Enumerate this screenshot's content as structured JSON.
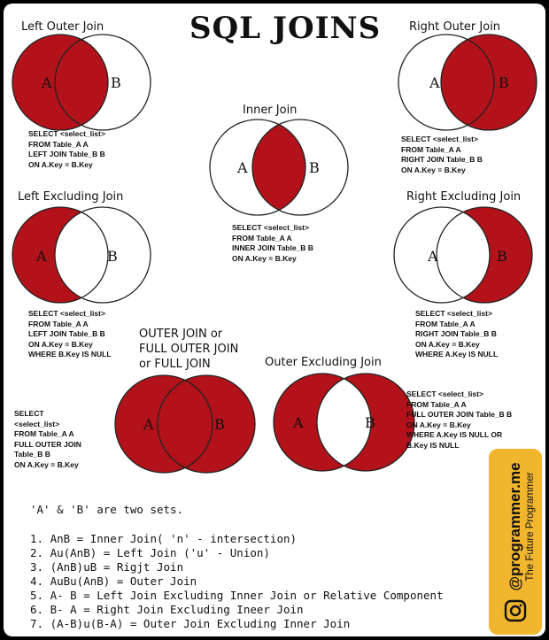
{
  "title": "SQL JOINS",
  "set_a": "A",
  "set_b": "B",
  "colors": {
    "fill": "#b3121a",
    "stroke": "#222222",
    "background": "#ffffff",
    "brand": "#f2b62e"
  },
  "left_outer": {
    "title": "Left Outer Join",
    "code": [
      "SELECT <select_list>",
      "FROM Table_A A",
      "LEFT JOIN Table_B B",
      "ON A.Key = B.Key"
    ]
  },
  "right_outer": {
    "title": "Right Outer Join",
    "code": [
      "SELECT <select_list>",
      "FROM Table_A A",
      "RIGHT JOIN Table_B B",
      "ON A.Key = B.Key"
    ]
  },
  "inner": {
    "title": "Inner Join",
    "code": [
      "SELECT <select_list>",
      "FROM Table_A A",
      "INNER JOIN Table_B B",
      "ON A.Key = B.Key"
    ]
  },
  "left_excl": {
    "title": "Left Excluding Join",
    "code": [
      "SELECT <select_list>",
      "FROM Table_A A",
      "LEFT JOIN Table_B B",
      "ON A.Key = B.Key",
      "WHERE B.Key IS NULL"
    ]
  },
  "right_excl": {
    "title": "Right Excluding Join",
    "code": [
      "SELECT <select_list>",
      "FROM Table_A A",
      "RIGHT JOIN Table_B B",
      "ON A.Key = B.Key",
      "WHERE A.Key IS NULL"
    ]
  },
  "full_outer": {
    "title": [
      "OUTER JOIN or",
      "FULL OUTER JOIN",
      "or FULL JOIN"
    ],
    "code": [
      "SELECT",
      "<select_list>",
      "FROM Table_A A",
      "FULL OUTER JOIN",
      "Table_B B",
      "ON A.Key = B.Key"
    ]
  },
  "outer_excl": {
    "title": "Outer Excluding Join",
    "code": [
      "SELECT <select_list>",
      "FROM Table_A A",
      "FULL OUTER JOIN Table_B B",
      "ON A.Key = B.Key",
      "WHERE A.Key IS NULL OR",
      "B.Key IS NULL"
    ]
  },
  "notes": {
    "intro": "'A' & 'B' are two sets.",
    "items": [
      "1. AnB = Inner Join( 'n' - intersection)",
      "2. Au(AnB) = Left Join ('u' - Union)",
      "3. (AnB)uB = Rigjt Join",
      "4. AuBu(AnB) = Outer Join",
      "5. A- B = Left Join Excluding Inner Join or Relative Component",
      "6. B- A = Right Join Excluding Ineer Join",
      "7. (A-B)u(B-A) = Outer Join Excluding Inner Join"
    ]
  },
  "brand": {
    "handle": "@programmer.me",
    "tagline": "The Future Programmer",
    "icon": "instagram-icon"
  }
}
